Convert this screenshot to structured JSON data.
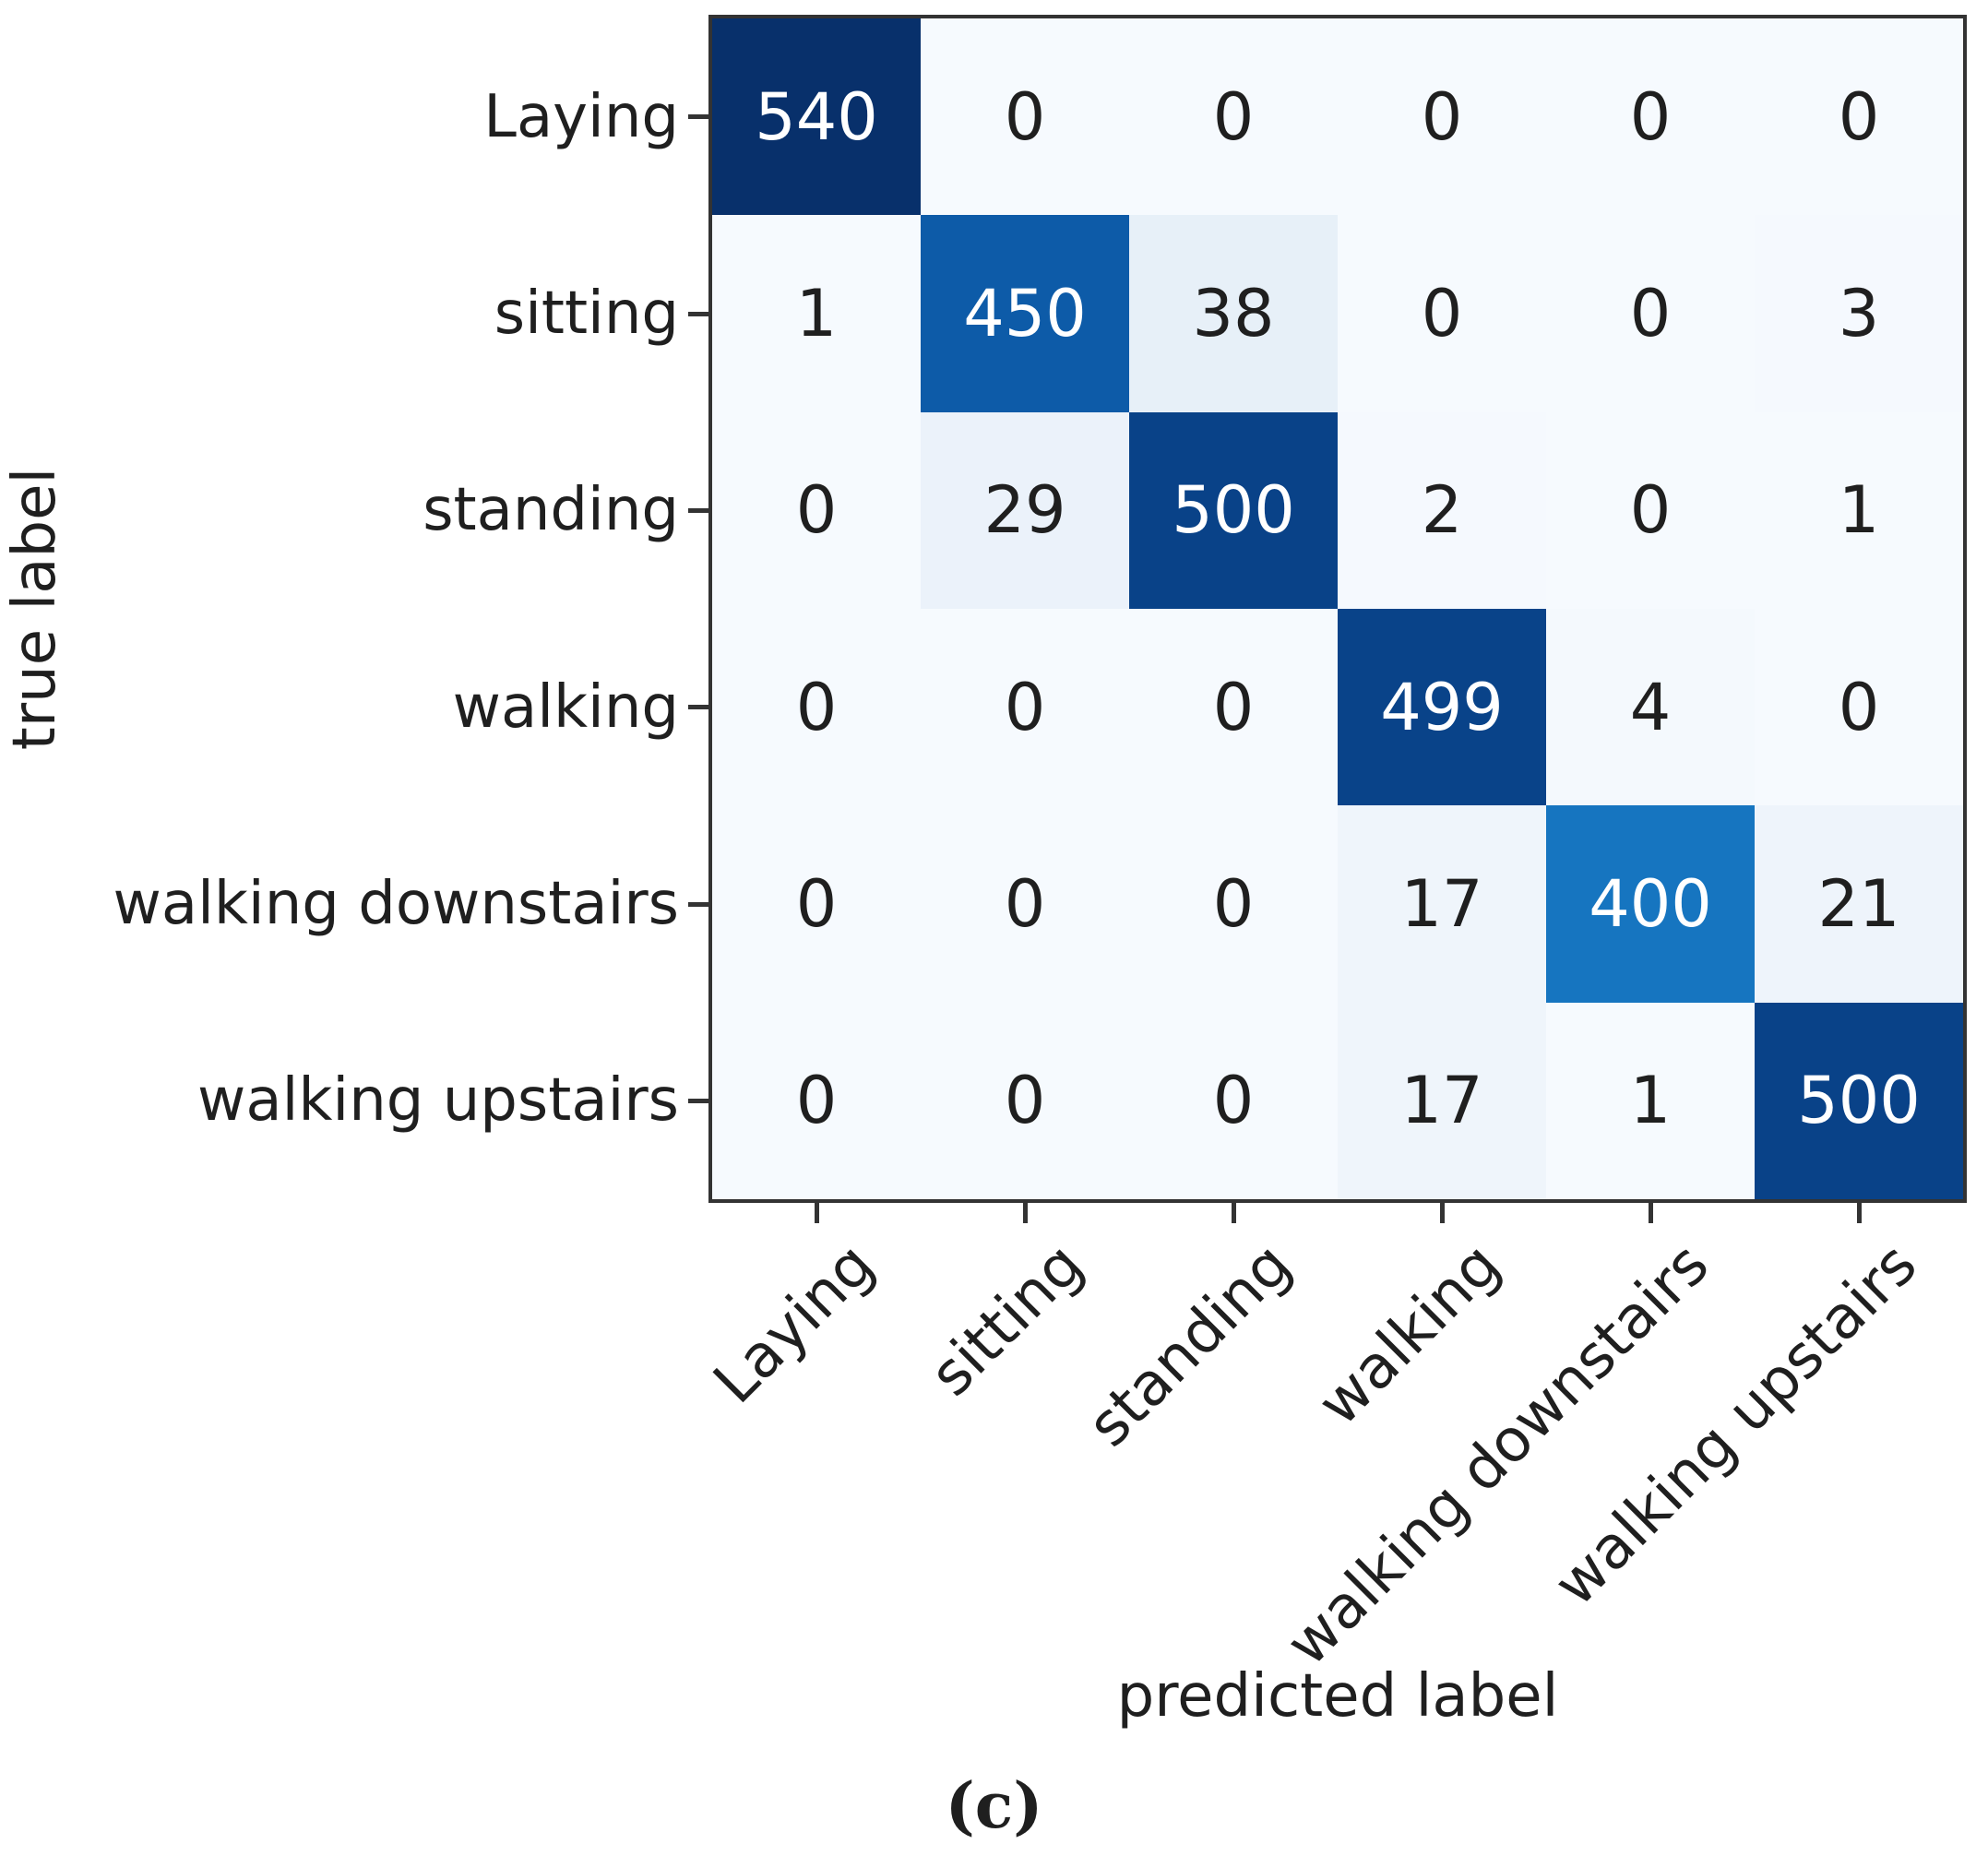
{
  "figure": {
    "caption": "(c)"
  },
  "chart_data": {
    "type": "heatmap",
    "title": "",
    "xlabel": "predicted label",
    "ylabel": "true label",
    "categories": [
      "Laying",
      "sitting",
      "standing",
      "walking",
      "walking downstairs",
      "walking upstairs"
    ],
    "matrix": [
      [
        540,
        0,
        0,
        0,
        0,
        0
      ],
      [
        1,
        450,
        38,
        0,
        0,
        3
      ],
      [
        0,
        29,
        500,
        2,
        0,
        1
      ],
      [
        0,
        0,
        0,
        499,
        4,
        0
      ],
      [
        0,
        0,
        0,
        17,
        400,
        21
      ],
      [
        0,
        0,
        0,
        17,
        1,
        500
      ]
    ],
    "vmin": 0,
    "vmax": 540,
    "colormap_name": "Blues",
    "colormap_stops": [
      [
        0.0,
        "#f6fafe"
      ],
      [
        0.125,
        "#dce8f4"
      ],
      [
        0.25,
        "#c6dbef"
      ],
      [
        0.375,
        "#9ecae1"
      ],
      [
        0.5,
        "#6baed6"
      ],
      [
        0.625,
        "#3a8ec6"
      ],
      [
        0.75,
        "#1373bf"
      ],
      [
        0.875,
        "#0a4f9c"
      ],
      [
        1.0,
        "#08306b"
      ]
    ],
    "annotation_light_threshold": 0.5,
    "text_color_dark": "#1f1f1f",
    "text_color_light": "#ffffff",
    "axis_color": "#333333",
    "grid": false,
    "legend": "none"
  }
}
